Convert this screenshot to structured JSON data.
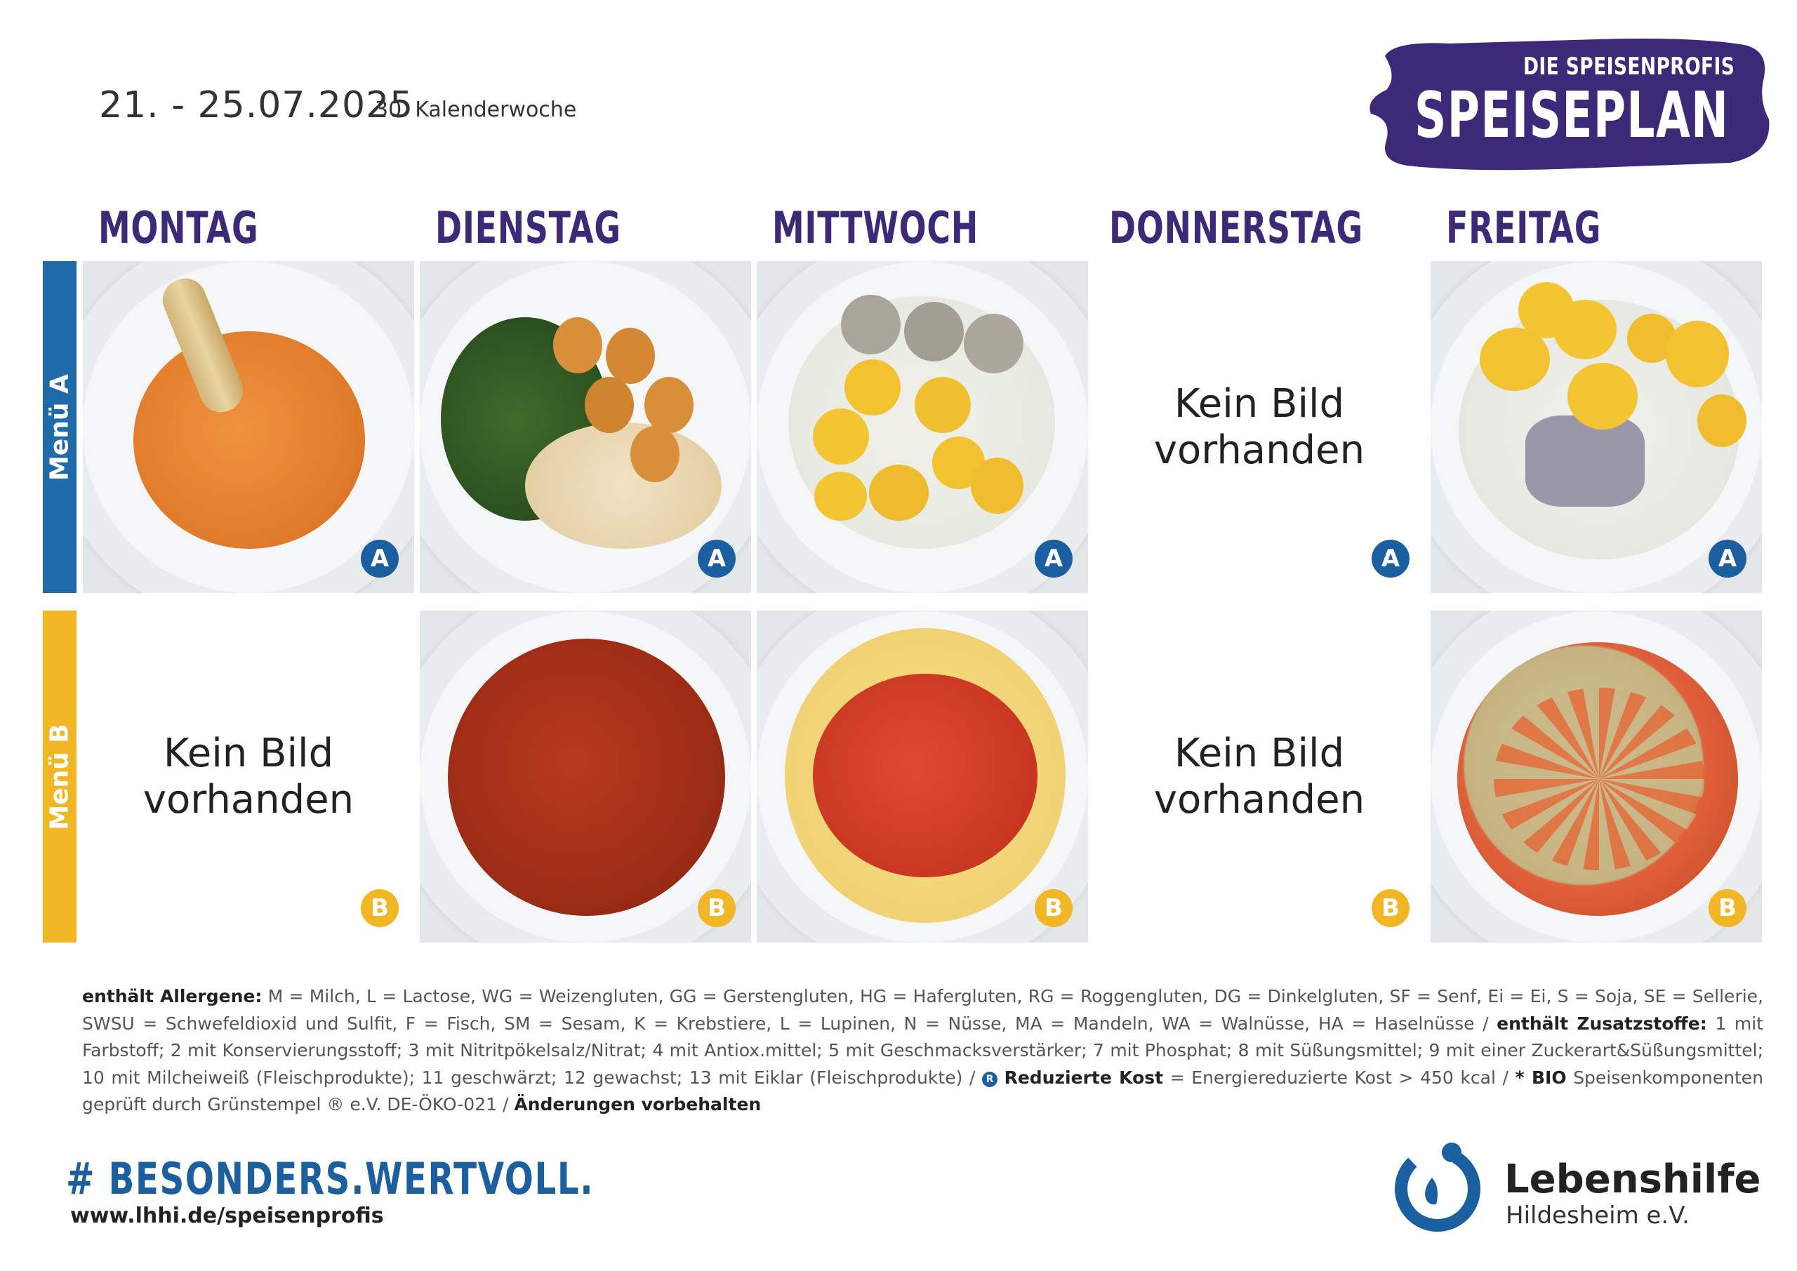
{
  "header": {
    "date_range": "21. - 25.07.2025",
    "week": "30. Kalenderwoche",
    "brand_top": "DIE SPEISENPROFIS",
    "brand_main": "SPEISEPLAN"
  },
  "days": [
    "MONTAG",
    "DIENSTAG",
    "MITTWOCH",
    "DONNERSTAG",
    "FREITAG"
  ],
  "rows": [
    {
      "label": "Menü A",
      "badge": "A"
    },
    {
      "label": "Menü B",
      "badge": "B"
    }
  ],
  "no_image_text": "Kein Bild vorhanden",
  "colors": {
    "purple": "#3c2a78",
    "blue": "#1b5fa0",
    "yellow": "#f0b624"
  },
  "legend": {
    "allergen_title": "enthält Allergene:",
    "allergen_text": "M = Milch, L = Lactose, WG = Weizengluten, GG = Gerstengluten, HG = Hafergluten, RG = Roggengluten, DG = Dinkelgluten, SF = Senf, Ei = Ei, S = Soja, SE = Sellerie, SWSU = Schwefeldioxid und Sulfit, F = Fisch, SM = Sesam, K = Krebstiere, L = Lupinen, N = Nüsse, MA = Mandeln, WA = Walnüsse, HA = Haselnüsse /",
    "additive_title": "enthält Zusatzstoffe:",
    "additive_text": "1 mit Farbstoff; 2 mit Konservierungsstoff; 3 mit Nitritpökelsalz/Nitrat; 4 mit Antiox.mittel; 5 mit Geschmacksverstärker; 7 mit Phosphat; 8 mit Süßungsmittel; 9 mit einer Zuckerart&Süßungsmittel; 10 mit Milcheiweiß (Fleischprodukte); 11 geschwärzt; 12 gewachst; 13 mit Eiklar (Fleischprodukte) /",
    "reduced_mark": "R",
    "reduced_title": "Reduzierte Kost",
    "reduced_text": "= Energiereduzierte Kost > 450 kcal /",
    "bio_title": "* BIO",
    "bio_text": "Speisenkomponenten geprüft durch Grünstempel ® e.V. DE-ÖKO-021 /",
    "changes": "Änderungen vorbehalten"
  },
  "footer": {
    "hashtag": "# BESONDERS.WERTVOLL.",
    "url": "www.lhhi.de/speisenprofis",
    "org_name": "Lebenshilfe",
    "org_sub": "Hildesheim e.V."
  }
}
